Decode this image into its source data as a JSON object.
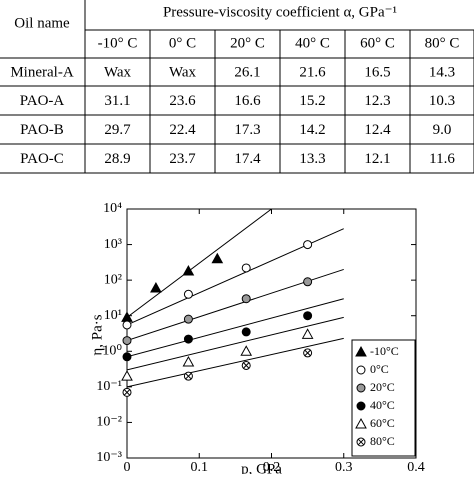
{
  "table": {
    "header": [
      "Oil name",
      "Pressure-viscosity coefficient α, GPa⁻¹"
    ],
    "columns": [
      "-10° C",
      "0° C",
      "20° C",
      "40° C",
      "60° C",
      "80° C"
    ],
    "rows": [
      [
        "Mineral-A",
        "Wax",
        "Wax",
        "26.1",
        "21.6",
        "16.5",
        "14.3"
      ],
      [
        "PAO-A",
        "31.1",
        "23.6",
        "16.6",
        "15.2",
        "12.3",
        "10.3"
      ],
      [
        "PAO-B",
        "29.7",
        "22.4",
        "17.3",
        "14.2",
        "12.4",
        "9.0"
      ],
      [
        "PAO-C",
        "28.9",
        "23.7",
        "17.4",
        "13.3",
        "12.1",
        "11.6"
      ]
    ]
  },
  "chart_data": {
    "type": "scatter",
    "xlabel": "p, GPa",
    "ylabel": "η,  Pa·s",
    "yscale": "log",
    "xlim": [
      0,
      0.4
    ],
    "xticks": [
      0,
      0.1,
      0.2,
      0.3,
      0.4
    ],
    "ylim": [
      0.001,
      10000
    ],
    "yticks": [
      {
        "value": 0.001,
        "label": "10⁻³"
      },
      {
        "value": 0.01,
        "label": "10⁻²"
      },
      {
        "value": 0.1,
        "label": "10⁻¹"
      },
      {
        "value": 1,
        "label": "10⁰"
      },
      {
        "value": 10,
        "label": "10¹"
      },
      {
        "value": 100,
        "label": "10²"
      },
      {
        "value": 1000,
        "label": "10³"
      },
      {
        "value": 10000,
        "label": "10⁴"
      }
    ],
    "legend": "lower right",
    "series": [
      {
        "name": "-10°C",
        "marker": "triangle",
        "color": "#000",
        "fill": "#000",
        "x": [
          0,
          0.04,
          0.085,
          0.125
        ],
        "values": [
          9,
          60,
          180,
          400
        ],
        "fit": {
          "x": [
            0,
            0.2
          ],
          "values": [
            9,
            10000
          ]
        }
      },
      {
        "name": "0°C",
        "marker": "circle",
        "color": "#000",
        "fill": "#fff",
        "x": [
          0,
          0.085,
          0.165,
          0.25
        ],
        "values": [
          5.5,
          40,
          220,
          1000
        ],
        "fit": {
          "x": [
            0,
            0.3
          ],
          "values": [
            5.5,
            2800
          ]
        }
      },
      {
        "name": "20°C",
        "marker": "circle",
        "color": "#000",
        "fill": "#999",
        "x": [
          0,
          0.085,
          0.165,
          0.25
        ],
        "values": [
          2,
          8,
          30,
          90
        ],
        "fit": {
          "x": [
            0,
            0.3
          ],
          "values": [
            2,
            200
          ]
        }
      },
      {
        "name": "40°C",
        "marker": "circle",
        "color": "#000",
        "fill": "#000",
        "x": [
          0,
          0.085,
          0.165,
          0.25
        ],
        "values": [
          0.7,
          2.2,
          3.5,
          10
        ],
        "fit": {
          "x": [
            0,
            0.3
          ],
          "values": [
            0.7,
            30
          ]
        }
      },
      {
        "name": "60°C",
        "marker": "triangle",
        "color": "#000",
        "fill": "#fff",
        "x": [
          0,
          0.085,
          0.165,
          0.25
        ],
        "values": [
          0.2,
          0.5,
          1,
          3
        ],
        "fit": {
          "x": [
            0,
            0.3
          ],
          "values": [
            0.3,
            9
          ]
        }
      },
      {
        "name": "80°C",
        "marker": "crossed-circle",
        "color": "#000",
        "fill": "#fff",
        "x": [
          0,
          0.085,
          0.165,
          0.25
        ],
        "values": [
          0.07,
          0.2,
          0.4,
          0.9
        ],
        "fit": {
          "x": [
            0,
            0.3
          ],
          "values": [
            0.1,
            2.3
          ]
        }
      }
    ]
  }
}
